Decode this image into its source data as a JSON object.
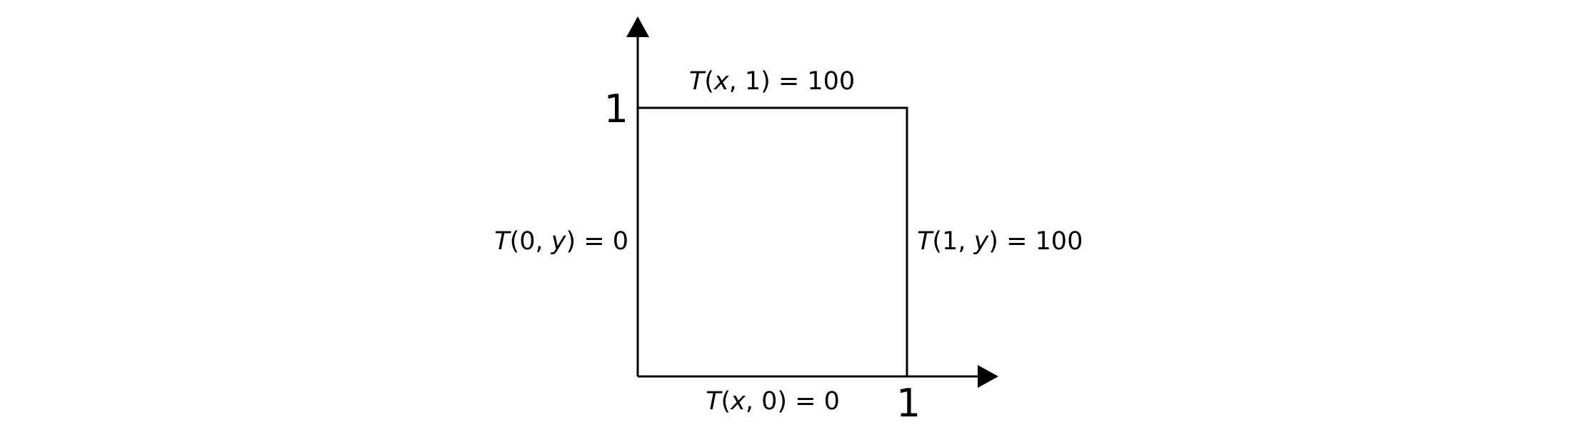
{
  "diagram": {
    "axes": {
      "x_tick": "1",
      "y_tick": "1"
    },
    "boundary_conditions": {
      "top": {
        "fn": "T",
        "open": "(",
        "var": "x",
        "rest": ", 1) = 100"
      },
      "left": {
        "fn": "T",
        "open": "(0, ",
        "var": "y",
        "rest": ") = 0"
      },
      "right": {
        "fn": "T",
        "open": "(1, ",
        "var": "y",
        "rest": ") = 100"
      },
      "bottom": {
        "fn": "T",
        "open": "(",
        "var": "x",
        "rest": ", 0) = 0"
      }
    }
  }
}
